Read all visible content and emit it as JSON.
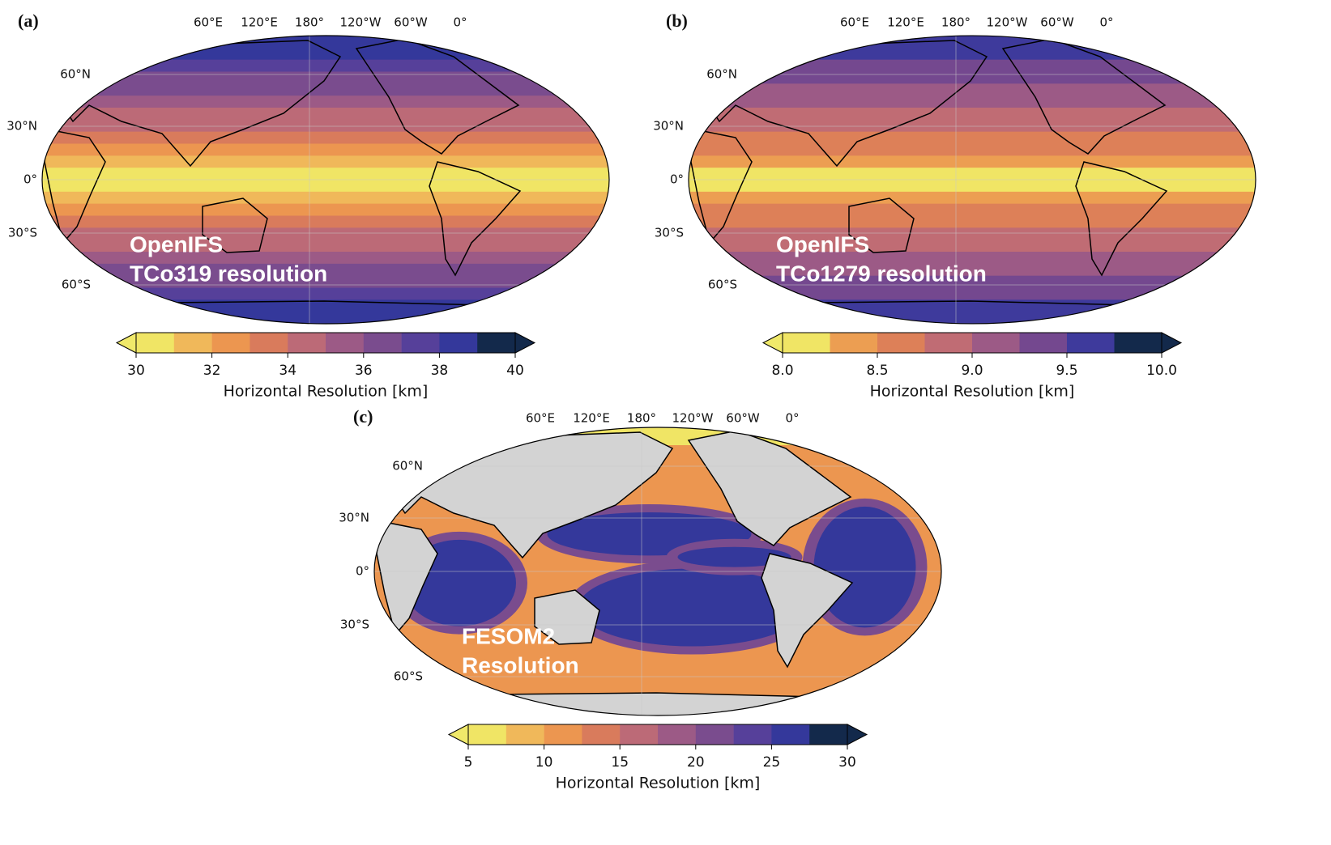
{
  "panels": [
    {
      "label": "(a)",
      "lon_labels": [
        "60°E",
        "120°E",
        "180°",
        "120°W",
        "60°W",
        "0°"
      ],
      "lat_labels": [
        "60°N",
        "30°N",
        "0°",
        "30°S",
        "60°S"
      ],
      "annotation": [
        "OpenIFS",
        "TCo319 resolution"
      ],
      "colorbar": {
        "label": "Horizontal Resolution [km]",
        "lim": [
          30,
          40
        ],
        "ticks": [
          30,
          32,
          34,
          36,
          38,
          40
        ],
        "levels": [
          30,
          31,
          32,
          33,
          34,
          35,
          36,
          37,
          38,
          39,
          40
        ],
        "colors": [
          "#f0e565",
          "#f0b85a",
          "#ec9650",
          "#d97b5c",
          "#bc6a77",
          "#9c5a86",
          "#7a4c8e",
          "#56409a",
          "#34389b",
          "#13294b"
        ],
        "under_color": "#f0e96a",
        "over_color": "#13294b"
      }
    },
    {
      "label": "(b)",
      "lon_labels": [
        "60°E",
        "120°E",
        "180°",
        "120°W",
        "60°W",
        "0°"
      ],
      "lat_labels": [
        "60°N",
        "30°N",
        "0°",
        "30°S",
        "60°S"
      ],
      "annotation": [
        "OpenIFS",
        "TCo1279 resolution"
      ],
      "colorbar": {
        "label": "Horizontal Resolution [km]",
        "lim": [
          8,
          10
        ],
        "ticks": [
          {
            "value": 8,
            "label": "8.0"
          },
          8.5,
          {
            "value": 9,
            "label": "9.0"
          },
          9.5,
          {
            "value": 10,
            "label": "10.0"
          }
        ],
        "levels": [
          8,
          8.25,
          8.5,
          8.75,
          9,
          9.25,
          9.5,
          9.75,
          10
        ],
        "colors": [
          "#f0e565",
          "#ec9e52",
          "#dd8058",
          "#c06c74",
          "#9c5a86",
          "#74488f",
          "#3e3a9c",
          "#13294b"
        ],
        "under_color": "#f0e96a",
        "over_color": "#13294b"
      }
    },
    {
      "label": "(c)",
      "lon_labels": [
        "60°E",
        "120°E",
        "180°",
        "120°W",
        "60°W",
        "0°"
      ],
      "lat_labels": [
        "60°N",
        "30°N",
        "0°",
        "30°S",
        "60°S"
      ],
      "annotation": [
        "FESOM2",
        "Resolution"
      ],
      "land_color": "#d3d3d3",
      "colorbar": {
        "label": "Horizontal Resolution [km]",
        "lim": [
          5,
          30
        ],
        "ticks": [
          5,
          10,
          15,
          20,
          25,
          30
        ],
        "levels": [
          5,
          7.5,
          10,
          12.5,
          15,
          17.5,
          20,
          22.5,
          25,
          27.5,
          30
        ],
        "colors": [
          "#f0e565",
          "#f0b85a",
          "#ec9650",
          "#d97b5c",
          "#bc6a77",
          "#9c5a86",
          "#7a4c8e",
          "#56409a",
          "#34389b",
          "#13294b"
        ],
        "under_color": "#f0e96a",
        "over_color": "#13294b"
      }
    }
  ]
}
